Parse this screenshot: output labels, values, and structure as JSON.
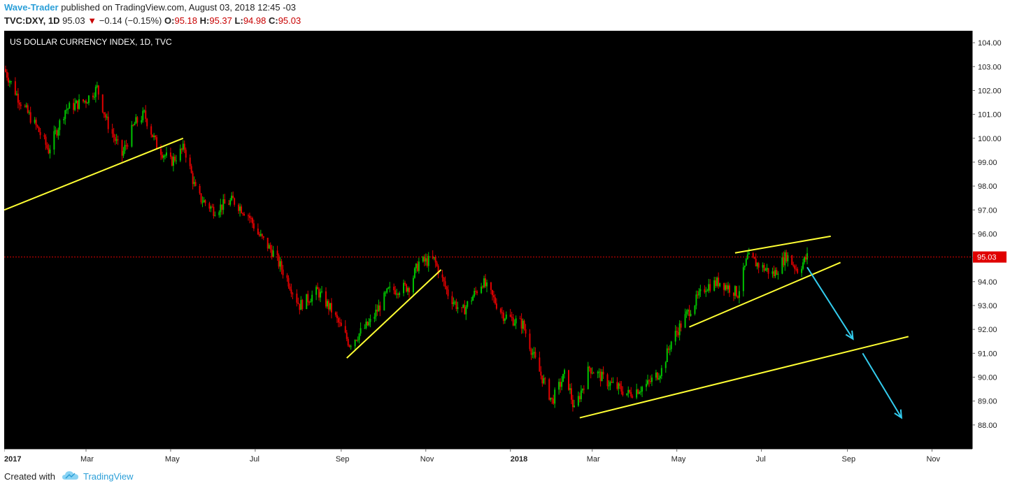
{
  "header": {
    "author": "Wave-Trader",
    "published_text": "published on TradingView.com, August 03, 2018 12:45 -03",
    "symbol": "TVC:DXY, 1D",
    "last": "95.03",
    "change": "−0.14 (−0.15%)",
    "o_label": "O:",
    "o_value": "95.18",
    "h_label": "H:",
    "h_value": "95.37",
    "l_label": "L:",
    "l_value": "94.98",
    "c_label": "C:",
    "c_value": "95.03"
  },
  "footer": {
    "created_with": "Created with",
    "brand": "TradingView",
    "brand_icon": "tradingview-cloud-icon"
  },
  "colors": {
    "background": "#000000",
    "up": "#00c400",
    "down": "#e00000",
    "trendline": "#ffff33",
    "arrow": "#33ccee",
    "price_line": "#e00000"
  },
  "chart_data": {
    "type": "candlestick",
    "title": "US DOLLAR CURRENCY INDEX, 1D, TVC",
    "last_price": 95.03,
    "ylim": [
      87.0,
      104.5
    ],
    "y_ticks": [
      "104.00",
      "103.00",
      "102.00",
      "101.00",
      "100.00",
      "99.00",
      "98.00",
      "97.00",
      "96.00",
      "95.00",
      "94.00",
      "93.00",
      "92.00",
      "91.00",
      "90.00",
      "89.00",
      "88.00"
    ],
    "x_range": [
      "2017-01-01",
      "2018-11-30"
    ],
    "x_ticks": [
      {
        "label": "2017",
        "date": "2017-01-01",
        "bold": true
      },
      {
        "label": "Mar",
        "date": "2017-03-01"
      },
      {
        "label": "May",
        "date": "2017-05-01"
      },
      {
        "label": "Jul",
        "date": "2017-07-01"
      },
      {
        "label": "Sep",
        "date": "2017-09-01"
      },
      {
        "label": "Nov",
        "date": "2017-11-01"
      },
      {
        "label": "2018",
        "date": "2018-01-01",
        "bold": true
      },
      {
        "label": "Mar",
        "date": "2018-03-01"
      },
      {
        "label": "May",
        "date": "2018-05-01"
      },
      {
        "label": "Jul",
        "date": "2018-07-01"
      },
      {
        "label": "Sep",
        "date": "2018-09-01"
      },
      {
        "label": "Nov",
        "date": "2018-11-01"
      }
    ],
    "price_path": [
      [
        "2017-01-01",
        102.9
      ],
      [
        "2017-01-12",
        101.6
      ],
      [
        "2017-01-25",
        100.4
      ],
      [
        "2017-02-02",
        99.5
      ],
      [
        "2017-02-14",
        101.2
      ],
      [
        "2017-03-01",
        101.6
      ],
      [
        "2017-03-09",
        102.1
      ],
      [
        "2017-03-16",
        100.7
      ],
      [
        "2017-03-27",
        99.3
      ],
      [
        "2017-04-05",
        100.6
      ],
      [
        "2017-04-12",
        101.0
      ],
      [
        "2017-04-21",
        99.7
      ],
      [
        "2017-05-01",
        99.0
      ],
      [
        "2017-05-11",
        99.6
      ],
      [
        "2017-05-20",
        97.6
      ],
      [
        "2017-06-01",
        97.0
      ],
      [
        "2017-06-15",
        97.4
      ],
      [
        "2017-06-26",
        96.8
      ],
      [
        "2017-07-03",
        96.0
      ],
      [
        "2017-07-14",
        95.2
      ],
      [
        "2017-07-25",
        94.0
      ],
      [
        "2017-08-02",
        93.0
      ],
      [
        "2017-08-15",
        93.6
      ],
      [
        "2017-08-25",
        92.8
      ],
      [
        "2017-09-07",
        91.4
      ],
      [
        "2017-09-22",
        92.3
      ],
      [
        "2017-10-05",
        93.6
      ],
      [
        "2017-10-20",
        93.8
      ],
      [
        "2017-10-27",
        94.8
      ],
      [
        "2017-11-07",
        94.9
      ],
      [
        "2017-11-17",
        93.5
      ],
      [
        "2017-11-27",
        92.7
      ],
      [
        "2017-12-12",
        94.0
      ],
      [
        "2017-12-27",
        92.6
      ],
      [
        "2018-01-10",
        92.2
      ],
      [
        "2018-01-20",
        90.5
      ],
      [
        "2018-01-31",
        89.0
      ],
      [
        "2018-02-10",
        90.2
      ],
      [
        "2018-02-16",
        88.6
      ],
      [
        "2018-02-27",
        90.4
      ],
      [
        "2018-03-12",
        89.8
      ],
      [
        "2018-03-27",
        89.3
      ],
      [
        "2018-04-10",
        89.7
      ],
      [
        "2018-04-20",
        90.3
      ],
      [
        "2018-04-27",
        91.5
      ],
      [
        "2018-05-10",
        92.8
      ],
      [
        "2018-05-22",
        93.8
      ],
      [
        "2018-06-01",
        94.0
      ],
      [
        "2018-06-14",
        93.5
      ],
      [
        "2018-06-21",
        95.0
      ],
      [
        "2018-06-29",
        94.7
      ],
      [
        "2018-07-10",
        94.3
      ],
      [
        "2018-07-19",
        95.1
      ],
      [
        "2018-07-27",
        94.5
      ],
      [
        "2018-08-03",
        95.03
      ]
    ],
    "trendlines": [
      {
        "from": [
          "2017-01-01",
          97.0
        ],
        "to": [
          "2017-05-10",
          100.0
        ]
      },
      {
        "from": [
          "2017-09-05",
          90.8
        ],
        "to": [
          "2017-11-12",
          94.5
        ]
      },
      {
        "from": [
          "2018-02-20",
          88.3
        ],
        "to": [
          "2018-10-15",
          91.7
        ]
      },
      {
        "from": [
          "2018-05-10",
          92.1
        ],
        "to": [
          "2018-08-27",
          94.8
        ]
      },
      {
        "from": [
          "2018-06-12",
          95.2
        ],
        "to": [
          "2018-08-20",
          95.9
        ]
      }
    ],
    "projection_arrows": [
      {
        "from": [
          "2018-08-03",
          94.6
        ],
        "to": [
          "2018-09-05",
          91.6
        ]
      },
      {
        "from": [
          "2018-09-12",
          91.0
        ],
        "to": [
          "2018-10-10",
          88.3
        ]
      }
    ]
  }
}
